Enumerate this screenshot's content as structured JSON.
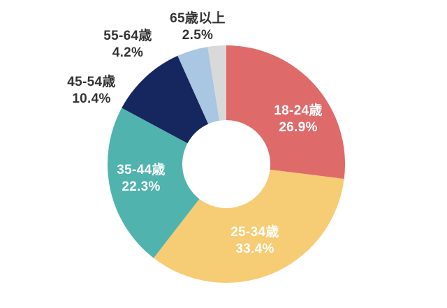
{
  "chart_data": {
    "type": "pie",
    "variant": "donut",
    "title": "",
    "legend": "none",
    "direction": "clockwise",
    "start_angle_deg": 0,
    "inner_radius_ratio": 0.37,
    "background_color": "#ffffff",
    "inside_label_color": "#ffffff",
    "outside_label_color": "#333333",
    "categories": [
      "18-24歳",
      "25-34歳",
      "35-44歳",
      "45-54歳",
      "55-64歳",
      "65歳以上"
    ],
    "values": [
      26.9,
      33.4,
      22.3,
      10.4,
      4.2,
      2.5
    ],
    "slices": [
      {
        "category": "18-24歳",
        "value": 26.9,
        "percent_label": "26.9%",
        "color": "#de6a6a",
        "label_position": "inside"
      },
      {
        "category": "25-34歳",
        "value": 33.4,
        "percent_label": "33.4%",
        "color": "#f6cc74",
        "label_position": "inside"
      },
      {
        "category": "35-44歳",
        "value": 22.3,
        "percent_label": "22.3%",
        "color": "#50b3ae",
        "label_position": "inside"
      },
      {
        "category": "45-54歳",
        "value": 10.4,
        "percent_label": "10.4%",
        "color": "#16265e",
        "label_position": "outside"
      },
      {
        "category": "55-64歳",
        "value": 4.2,
        "percent_label": "4.2%",
        "color": "#a9c6e3",
        "label_position": "outside"
      },
      {
        "category": "65歳以上",
        "value": 2.5,
        "percent_label": "2.5%",
        "color": "#d9d9d9",
        "label_position": "outside"
      }
    ]
  }
}
